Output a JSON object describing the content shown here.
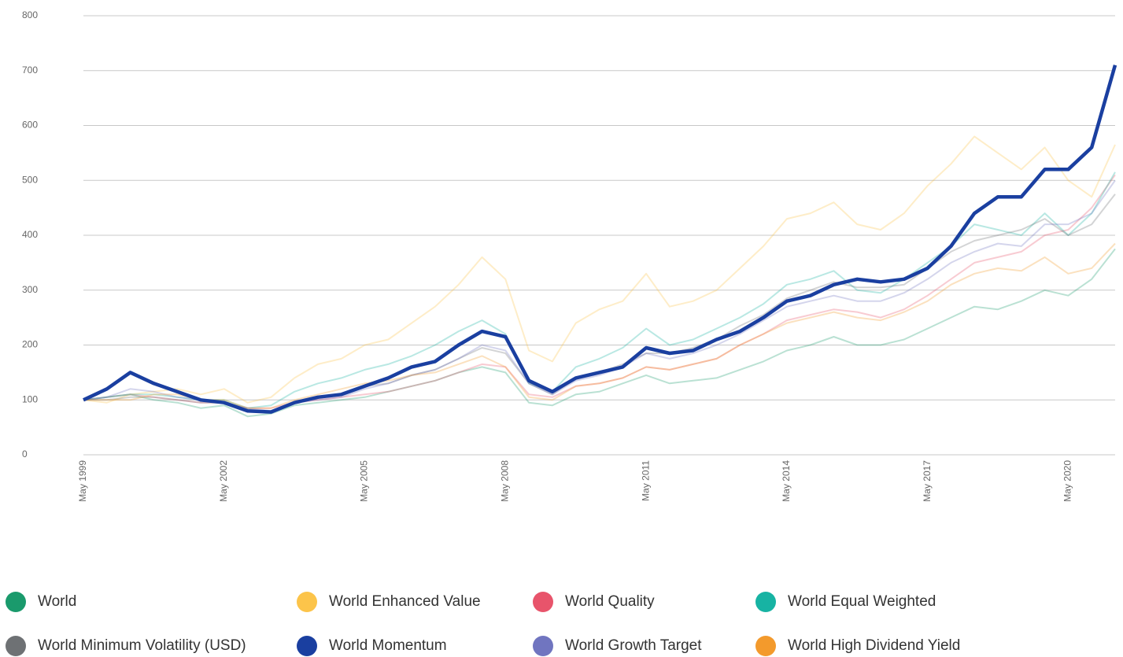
{
  "chart_data": {
    "type": "line",
    "categories": [
      "May 1999",
      null,
      null,
      null,
      null,
      null,
      "May 2002",
      null,
      null,
      null,
      null,
      null,
      "May 2005",
      null,
      null,
      null,
      null,
      null,
      "May 2008",
      null,
      null,
      null,
      null,
      null,
      "May 2011",
      null,
      null,
      null,
      null,
      null,
      "May 2014",
      null,
      null,
      null,
      null,
      null,
      "May 2017",
      null,
      null,
      null,
      null,
      null,
      "May 2020",
      null,
      null
    ],
    "ylim": [
      0,
      800
    ],
    "yticks": [
      0,
      100,
      200,
      300,
      400,
      500,
      600,
      700,
      800
    ],
    "grid": true,
    "highlight": "World Momentum",
    "series": [
      {
        "name": "World",
        "color": "#1a9a6c",
        "values": [
          100,
          105,
          110,
          100,
          95,
          85,
          90,
          70,
          75,
          90,
          95,
          100,
          105,
          115,
          125,
          135,
          150,
          160,
          150,
          95,
          90,
          110,
          115,
          130,
          145,
          130,
          135,
          140,
          155,
          170,
          190,
          200,
          215,
          200,
          200,
          210,
          230,
          250,
          270,
          265,
          280,
          300,
          290,
          320,
          375
        ]
      },
      {
        "name": "World Enhanced Value",
        "color": "#fcc44a",
        "values": [
          100,
          95,
          110,
          115,
          120,
          110,
          120,
          95,
          105,
          140,
          165,
          175,
          200,
          210,
          240,
          270,
          310,
          360,
          320,
          190,
          170,
          240,
          265,
          280,
          330,
          270,
          280,
          300,
          340,
          380,
          430,
          440,
          460,
          420,
          410,
          440,
          490,
          530,
          580,
          550,
          520,
          560,
          500,
          470,
          565
        ]
      },
      {
        "name": "World Quality",
        "color": "#e8546b",
        "values": [
          100,
          105,
          110,
          105,
          100,
          95,
          95,
          85,
          85,
          95,
          100,
          105,
          110,
          115,
          125,
          135,
          150,
          165,
          160,
          110,
          105,
          125,
          130,
          140,
          160,
          155,
          165,
          175,
          200,
          220,
          245,
          255,
          265,
          260,
          250,
          265,
          290,
          320,
          350,
          360,
          370,
          400,
          410,
          450,
          510
        ]
      },
      {
        "name": "World Equal Weighted",
        "color": "#17b3a3",
        "values": [
          100,
          105,
          110,
          110,
          105,
          100,
          100,
          85,
          90,
          115,
          130,
          140,
          155,
          165,
          180,
          200,
          225,
          245,
          220,
          130,
          115,
          160,
          175,
          195,
          230,
          200,
          210,
          230,
          250,
          275,
          310,
          320,
          335,
          300,
          295,
          320,
          350,
          380,
          420,
          410,
          400,
          440,
          400,
          440,
          515
        ]
      },
      {
        "name": "World Minimum Volatility (USD)",
        "color": "#6e7174",
        "values": [
          100,
          100,
          105,
          105,
          100,
          95,
          95,
          80,
          80,
          95,
          105,
          110,
          125,
          130,
          145,
          155,
          175,
          195,
          185,
          130,
          110,
          140,
          150,
          165,
          185,
          185,
          195,
          210,
          235,
          255,
          285,
          300,
          315,
          305,
          305,
          310,
          340,
          370,
          390,
          400,
          410,
          430,
          400,
          420,
          475
        ]
      },
      {
        "name": "World Momentum",
        "color": "#1a3fa0",
        "values": [
          100,
          120,
          150,
          130,
          115,
          100,
          95,
          80,
          78,
          95,
          105,
          110,
          125,
          140,
          160,
          170,
          200,
          225,
          215,
          135,
          115,
          140,
          150,
          160,
          195,
          185,
          190,
          210,
          225,
          250,
          280,
          290,
          310,
          320,
          315,
          320,
          340,
          380,
          440,
          470,
          470,
          520,
          520,
          560,
          710
        ]
      },
      {
        "name": "World Growth Target",
        "color": "#7075c0",
        "values": [
          100,
          105,
          120,
          115,
          105,
          100,
          95,
          85,
          80,
          95,
          100,
          105,
          120,
          130,
          145,
          155,
          175,
          200,
          190,
          130,
          110,
          135,
          145,
          160,
          185,
          175,
          185,
          200,
          220,
          245,
          270,
          280,
          290,
          280,
          280,
          295,
          320,
          350,
          370,
          385,
          380,
          420,
          420,
          440,
          500
        ]
      },
      {
        "name": "World High Dividend Yield",
        "color": "#f39a2c",
        "values": [
          100,
          100,
          100,
          110,
          110,
          100,
          100,
          85,
          85,
          100,
          110,
          120,
          130,
          135,
          145,
          150,
          165,
          180,
          160,
          105,
          100,
          125,
          130,
          140,
          160,
          155,
          165,
          175,
          200,
          220,
          240,
          250,
          260,
          250,
          245,
          260,
          280,
          310,
          330,
          340,
          335,
          360,
          330,
          340,
          385
        ]
      }
    ]
  }
}
